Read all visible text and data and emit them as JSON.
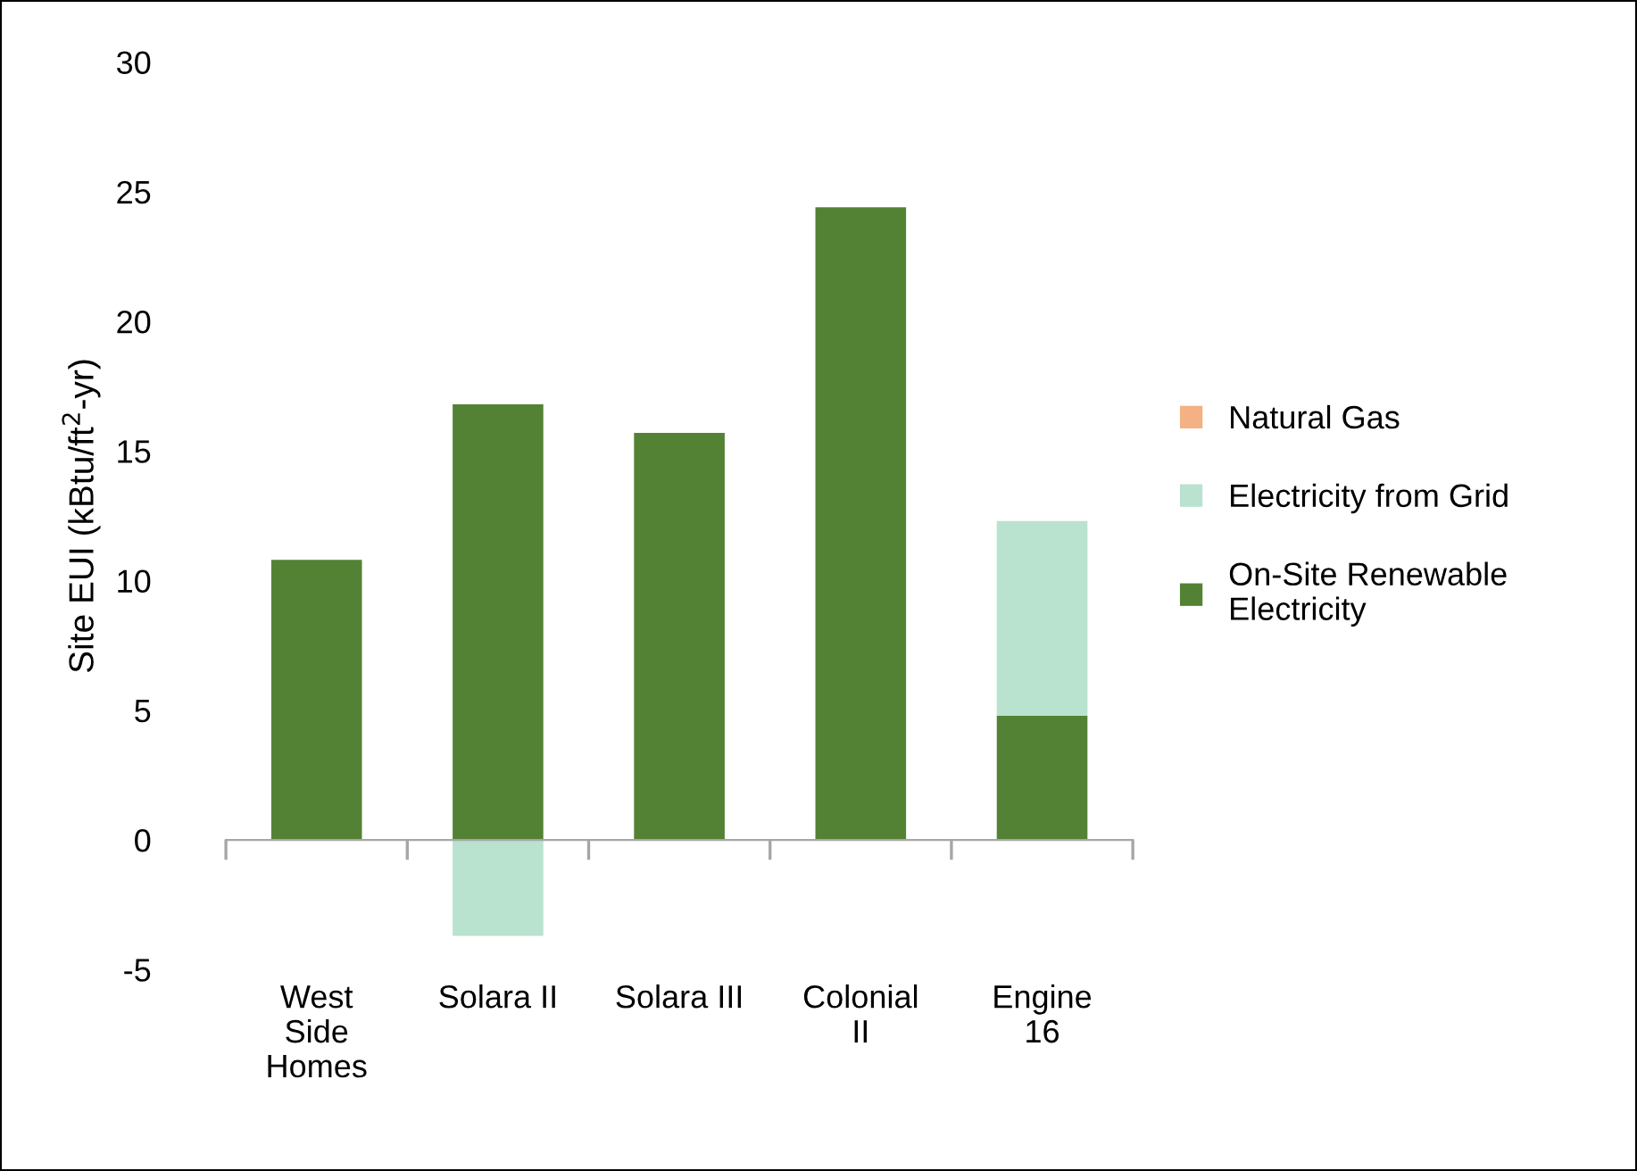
{
  "chart_data": {
    "type": "bar",
    "stacked": true,
    "ylabel": "Site EUI (kBtu/ft$^{2}$-yr)",
    "categories": [
      "West\nSide\nHomes",
      "Solara II",
      "Solara III",
      "Colonial\nII",
      "Engine\n16"
    ],
    "series": [
      {
        "name": "On-Site Renewable\nElectricity",
        "color": "#548235",
        "values": [
          10.8,
          16.8,
          15.7,
          24.4,
          4.8
        ]
      },
      {
        "name": "Electricity from Grid",
        "color": "#b9e2cf",
        "values": [
          0,
          -3.7,
          0,
          0,
          7.5
        ]
      },
      {
        "name": "Natural Gas",
        "color": "#f4b183",
        "values": [
          0,
          0,
          0,
          0,
          0
        ]
      }
    ],
    "ylim": [
      -5,
      30
    ],
    "yticks": [
      -5,
      0,
      5,
      10,
      15,
      20,
      25,
      30
    ],
    "legend": "right"
  }
}
